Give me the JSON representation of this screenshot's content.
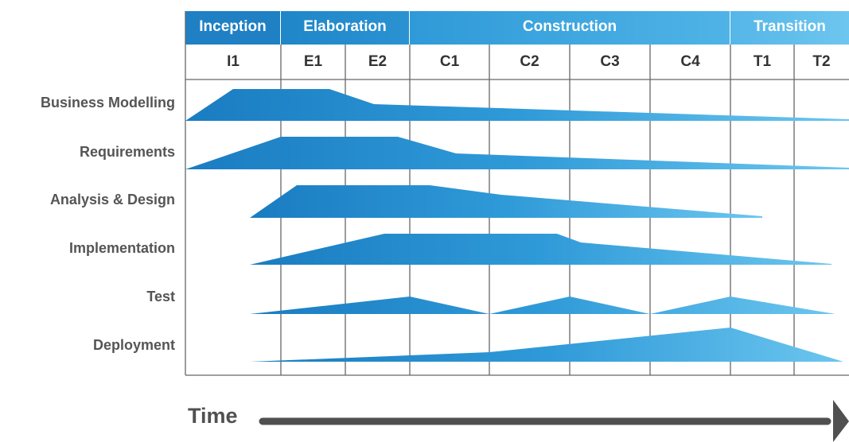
{
  "phases": [
    {
      "label": "Inception",
      "color": "#1f86c8"
    },
    {
      "label": "Elaboration",
      "color": "#2a8fd0"
    },
    {
      "label": "Construction",
      "color": "#3ea6e0"
    },
    {
      "label": "Transition",
      "color": "#5cbbe8"
    }
  ],
  "iterations": [
    "I1",
    "E1",
    "E2",
    "C1",
    "C2",
    "C3",
    "C4",
    "T1",
    "T2"
  ],
  "disciplines": [
    {
      "label": "Business Modelling"
    },
    {
      "label": "Requirements"
    },
    {
      "label": "Analysis & Design"
    },
    {
      "label": "Implementation"
    },
    {
      "label": "Test"
    },
    {
      "label": "Deployment"
    }
  ],
  "time_label": "Time",
  "colors": {
    "dark_blue": "#1a7cc1",
    "light_blue": "#6cc6ef",
    "grid": "#555555",
    "arrow": "#505050"
  }
}
